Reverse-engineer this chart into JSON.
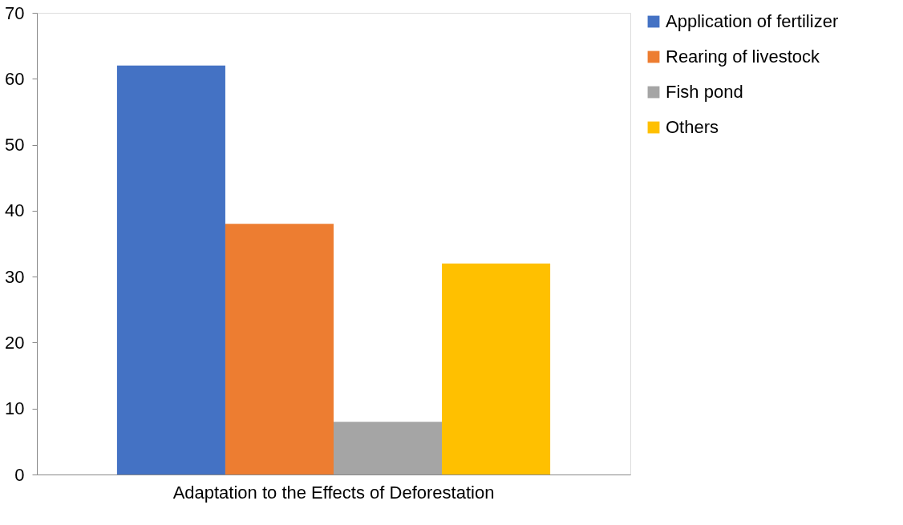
{
  "chart_data": {
    "type": "bar",
    "categories": [
      "Adaptation to the Effects of Deforestation"
    ],
    "series": [
      {
        "name": "Application of fertilizer",
        "color": "#4472c4",
        "values": [
          62
        ]
      },
      {
        "name": "Rearing of livestock",
        "color": "#ed7d31",
        "values": [
          38
        ]
      },
      {
        "name": "Fish pond",
        "color": "#a5a5a5",
        "values": [
          8
        ]
      },
      {
        "name": "Others",
        "color": "#ffc000",
        "values": [
          32
        ]
      }
    ],
    "ylim": [
      0,
      70
    ],
    "yticks": [
      0,
      10,
      20,
      30,
      40,
      50,
      60,
      70
    ],
    "grid": false,
    "legend": "right"
  }
}
